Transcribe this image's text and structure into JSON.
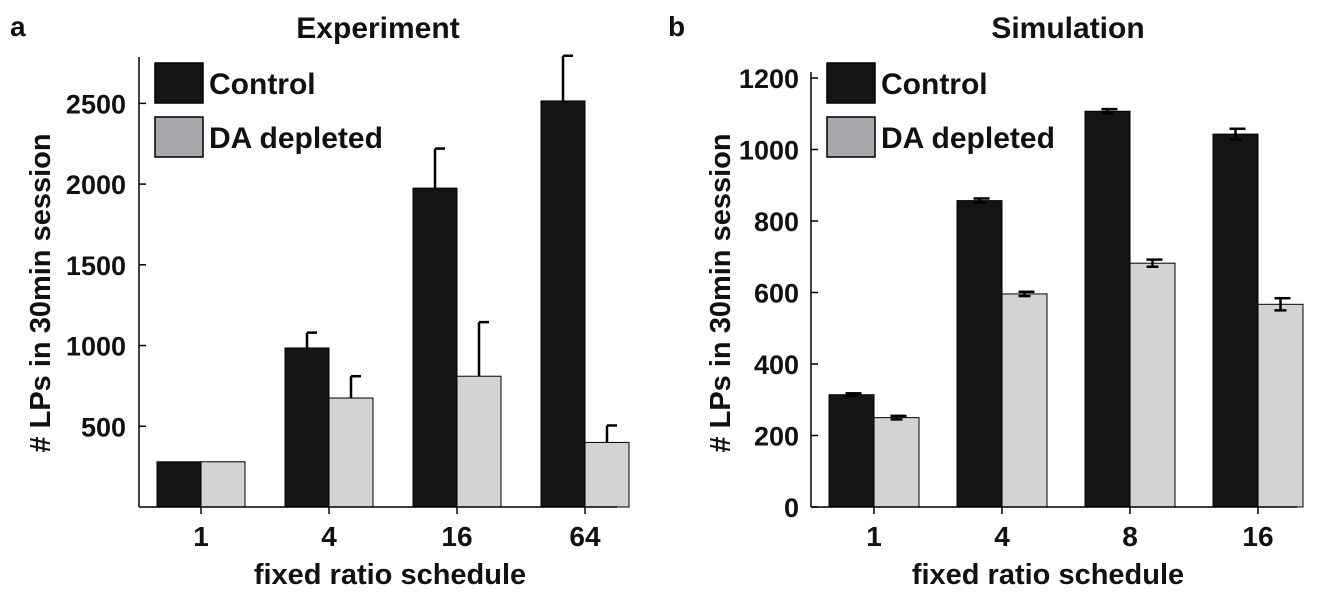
{
  "colors": {
    "control": "#151515",
    "depleted": "#d1d3d4",
    "axis": "#000000",
    "legend_depleted_swatch": "#a7a9ac"
  },
  "chart_data": [
    {
      "panel_label": "a",
      "type": "bar",
      "title": "Experiment",
      "xlabel": "fixed ratio schedule",
      "ylabel": "# LPs in 30min session",
      "categories": [
        "1",
        "4",
        "16",
        "64"
      ],
      "ylim": [
        0,
        2750
      ],
      "yticks": [
        500,
        1000,
        1500,
        2000,
        2500
      ],
      "ytick_labels": [
        "500",
        "1000",
        "1500",
        "2000",
        "2500"
      ],
      "series": [
        {
          "name": "Control",
          "values": [
            280,
            985,
            1975,
            2515
          ],
          "errors": [
            0,
            95,
            245,
            280
          ]
        },
        {
          "name": "DA depleted",
          "values": [
            280,
            675,
            810,
            400
          ],
          "errors": [
            0,
            135,
            335,
            105
          ]
        }
      ],
      "legend": "top-left",
      "grid": false
    },
    {
      "panel_label": "b",
      "type": "bar",
      "title": "Simulation",
      "xlabel": "fixed ratio schedule",
      "ylabel": "# LPs in 30min session",
      "categories": [
        "1",
        "4",
        "8",
        "16"
      ],
      "ylim": [
        0,
        1200
      ],
      "yticks": [
        0,
        200,
        400,
        600,
        800,
        1000,
        1200
      ],
      "ytick_labels": [
        "0",
        "200",
        "400",
        "600",
        "800",
        "1000",
        "1200"
      ],
      "series": [
        {
          "name": "Control",
          "values": [
            314,
            857,
            1107,
            1043
          ],
          "errors": [
            4,
            6,
            6,
            15
          ]
        },
        {
          "name": "DA depleted",
          "values": [
            250,
            596,
            682,
            567
          ],
          "errors": [
            5,
            6,
            10,
            17
          ]
        }
      ],
      "legend": "top-left",
      "grid": false
    }
  ]
}
